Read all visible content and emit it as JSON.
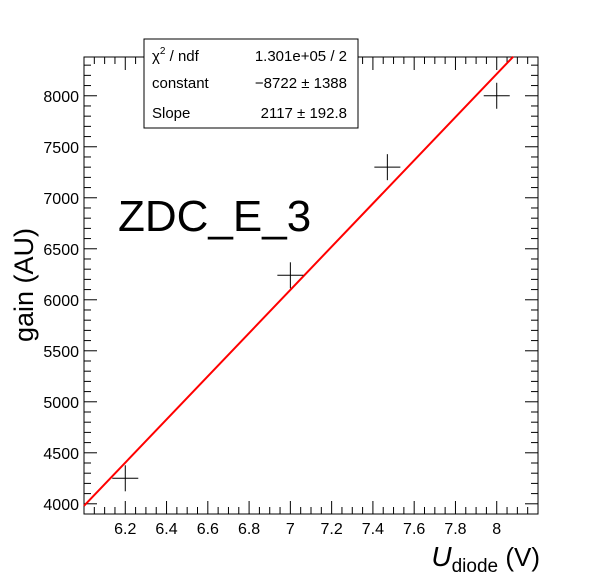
{
  "chart_data": {
    "type": "scatter",
    "title": "",
    "annotation": "ZDC_E_3",
    "xlabel": {
      "main": "U",
      "sub": "diode",
      "suffix": " (V)"
    },
    "ylabel": "gain (AU)",
    "xlim": [
      6.0,
      8.2
    ],
    "ylim": [
      3900,
      8380
    ],
    "x_ticks": [
      6.2,
      6.4,
      6.6,
      6.8,
      7,
      7.2,
      7.4,
      7.6,
      7.8,
      8
    ],
    "x_tick_labels": [
      "6.2",
      "6.4",
      "6.6",
      "6.8",
      "7",
      "7.2",
      "7.4",
      "7.6",
      "7.8",
      "8"
    ],
    "y_ticks": [
      4000,
      4500,
      5000,
      5500,
      6000,
      6500,
      7000,
      7500,
      8000
    ],
    "y_tick_labels": [
      "4000",
      "4500",
      "5000",
      "5500",
      "6000",
      "6500",
      "7000",
      "7500",
      "8000"
    ],
    "series": [
      {
        "points": [
          {
            "x": 6.2,
            "y": 4250
          },
          {
            "x": 7.0,
            "y": 6240
          },
          {
            "x": 7.47,
            "y": 7300
          },
          {
            "x": 8.0,
            "y": 8000
          }
        ]
      }
    ],
    "fit": {
      "type": "linear",
      "constant": -8722,
      "slope": 2117,
      "x_range": [
        6.0,
        8.08
      ],
      "color": "#ff0000"
    },
    "stats_box": {
      "rows": [
        {
          "label_main": "χ",
          "label_sup": "2",
          "label_rest": " / ndf",
          "value": "1.301e+05 / 2"
        },
        {
          "label_main": "constant",
          "label_sup": "",
          "label_rest": "",
          "value": "−8722 ±  1388"
        },
        {
          "label_main": "Slope",
          "label_sup": "",
          "label_rest": "",
          "value": "2117 ± 192.8"
        }
      ]
    }
  }
}
